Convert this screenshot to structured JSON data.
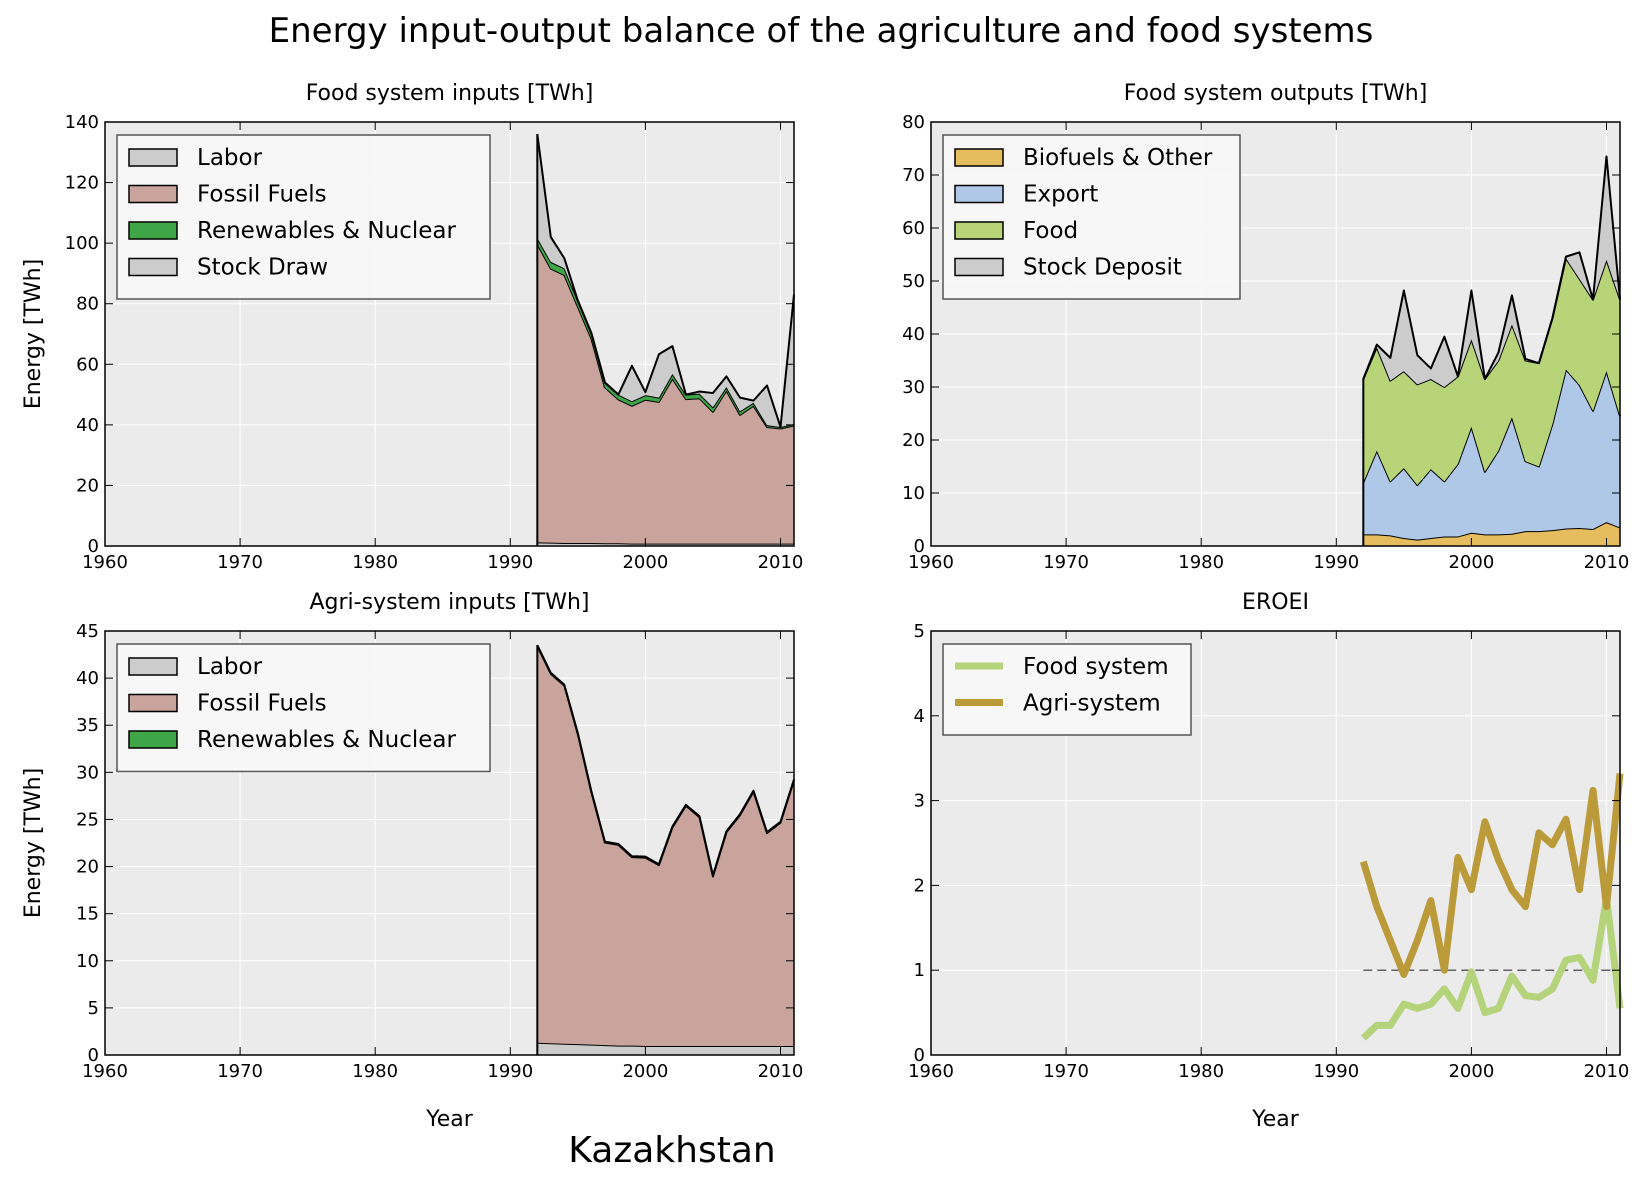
{
  "figure": {
    "title": "Energy input-output balance of the agriculture and food systems",
    "country": "Kazakhstan"
  },
  "colors": {
    "panel_bg": "#ebebeb",
    "labor": "#cccccc",
    "fossil": "#c8a49c",
    "renewables": "#3fa648",
    "stock": "#cccccc",
    "biofuels": "#e6bd5e",
    "export": "#b0c8e8",
    "food": "#b7d479",
    "food_system_line": "#b4d37a",
    "agri_system_line": "#bb9a3a"
  },
  "chart_data": [
    {
      "id": "food_inputs",
      "type": "area",
      "stacked": true,
      "title": "Food system inputs [TWh]",
      "xlabel": "",
      "ylabel": "Energy [TWh]",
      "xlim": [
        1960,
        2011
      ],
      "ylim": [
        0,
        140
      ],
      "xticks": [
        1960,
        1970,
        1980,
        1990,
        2000,
        2010
      ],
      "yticks": [
        0,
        20,
        40,
        60,
        80,
        100,
        120,
        140
      ],
      "grid": true,
      "legend_position": "top-left",
      "x": [
        1992,
        1993,
        1994,
        1995,
        1996,
        1997,
        1998,
        1999,
        2000,
        2001,
        2002,
        2003,
        2004,
        2005,
        2006,
        2007,
        2008,
        2009,
        2010,
        2011
      ],
      "series": [
        {
          "name": "Labor",
          "color_key": "labor",
          "values": [
            1.2,
            1.1,
            1.0,
            1.0,
            1.0,
            0.9,
            0.9,
            0.8,
            0.8,
            0.8,
            0.8,
            0.8,
            0.8,
            0.8,
            0.8,
            0.8,
            0.8,
            0.8,
            0.8,
            0.8
          ]
        },
        {
          "name": "Fossil Fuels",
          "color_key": "fossil",
          "values": [
            98.5,
            90.5,
            88.5,
            78,
            67.5,
            51.5,
            47.5,
            45.5,
            47.5,
            46.8,
            54.5,
            47.7,
            48,
            43.5,
            50.5,
            42.5,
            45.5,
            38.5,
            38,
            39
          ]
        },
        {
          "name": "Renewables & Nuclear",
          "color_key": "renewables",
          "values": [
            2.0,
            2.2,
            2.2,
            2.0,
            1.8,
            1.6,
            1.6,
            1.5,
            1.5,
            1.4,
            1.5,
            1.5,
            1.5,
            1.5,
            1.2,
            1.2,
            1.0,
            0.6,
            0.5,
            0.5
          ]
        },
        {
          "name": "Stock Draw",
          "color_key": "stock",
          "values": [
            34.3,
            8.2,
            3.3,
            0,
            0,
            0,
            0,
            11.7,
            1.0,
            14.3,
            9.2,
            0,
            0.7,
            4.7,
            3.5,
            4.5,
            0.7,
            13.1,
            0,
            42.7
          ]
        }
      ]
    },
    {
      "id": "food_outputs",
      "type": "area",
      "stacked": true,
      "title": "Food system outputs [TWh]",
      "xlabel": "",
      "ylabel": "",
      "xlim": [
        1960,
        2011
      ],
      "ylim": [
        0,
        80
      ],
      "xticks": [
        1960,
        1970,
        1980,
        1990,
        2000,
        2010
      ],
      "yticks": [
        0,
        10,
        20,
        30,
        40,
        50,
        60,
        70,
        80
      ],
      "grid": true,
      "legend_position": "top-left",
      "x": [
        1992,
        1993,
        1994,
        1995,
        1996,
        1997,
        1998,
        1999,
        2000,
        2001,
        2002,
        2003,
        2004,
        2005,
        2006,
        2007,
        2008,
        2009,
        2010,
        2011
      ],
      "series": [
        {
          "name": "Biofuels & Other",
          "color_key": "biofuels",
          "values": [
            2.2,
            2.2,
            2.0,
            1.5,
            1.2,
            1.5,
            1.8,
            1.8,
            2.5,
            2.2,
            2.2,
            2.3,
            2.8,
            2.8,
            3.0,
            3.3,
            3.4,
            3.2,
            4.5,
            3.5
          ]
        },
        {
          "name": "Export",
          "color_key": "export",
          "values": [
            9.8,
            15.8,
            10.2,
            13.2,
            10.3,
            13,
            10.4,
            13.7,
            20,
            11.8,
            15.8,
            22,
            13.2,
            12.2,
            20,
            30,
            27,
            22.3,
            28.5,
            21
          ]
        },
        {
          "name": "Food",
          "color_key": "food",
          "values": [
            19.5,
            19.5,
            19,
            18.3,
            19,
            17,
            17.8,
            16.5,
            16.5,
            17.5,
            17,
            17.5,
            19,
            19.5,
            20,
            21,
            20,
            21,
            21,
            22
          ]
        },
        {
          "name": "Stock Deposit",
          "color_key": "stock",
          "values": [
            0,
            0.5,
            4.3,
            15.2,
            5.5,
            2,
            9.5,
            0,
            9.2,
            0,
            1.5,
            5.5,
            0.3,
            0,
            0,
            0.3,
            5,
            0,
            19.5,
            0
          ]
        }
      ]
    },
    {
      "id": "agri_inputs",
      "type": "area",
      "stacked": true,
      "title": "Agri-system inputs [TWh]",
      "xlabel": "Year",
      "ylabel": "Energy [TWh]",
      "xlim": [
        1960,
        2011
      ],
      "ylim": [
        0,
        45
      ],
      "xticks": [
        1960,
        1970,
        1980,
        1990,
        2000,
        2010
      ],
      "yticks": [
        0,
        5,
        10,
        15,
        20,
        25,
        30,
        35,
        40,
        45
      ],
      "grid": true,
      "legend_position": "top-left",
      "x": [
        1992,
        1993,
        1994,
        1995,
        1996,
        1997,
        1998,
        1999,
        2000,
        2001,
        2002,
        2003,
        2004,
        2005,
        2006,
        2007,
        2008,
        2009,
        2010,
        2011
      ],
      "series": [
        {
          "name": "Labor",
          "color_key": "labor",
          "values": [
            1.3,
            1.25,
            1.2,
            1.15,
            1.1,
            1.05,
            1.0,
            1.0,
            0.95,
            0.95,
            0.95,
            0.95,
            0.95,
            0.95,
            0.95,
            0.95,
            0.95,
            0.95,
            0.95,
            0.95
          ]
        },
        {
          "name": "Fossil Fuels",
          "color_key": "fossil",
          "values": [
            42.1,
            39.2,
            38.0,
            32.9,
            26.8,
            21.5,
            21.3,
            20.0,
            20.0,
            19.2,
            23.2,
            25.5,
            24.3,
            18.0,
            22.7,
            24.5,
            27.0,
            22.6,
            23.7,
            28.2
          ]
        },
        {
          "name": "Renewables & Nuclear",
          "color_key": "renewables",
          "values": [
            0.1,
            0.1,
            0.1,
            0.1,
            0.1,
            0.1,
            0.1,
            0.1,
            0.1,
            0.1,
            0.1,
            0.1,
            0.1,
            0.1,
            0.1,
            0.1,
            0.1,
            0.1,
            0.1,
            0.1
          ]
        }
      ]
    },
    {
      "id": "eroei",
      "type": "line",
      "title": "EROEI",
      "xlabel": "Year",
      "ylabel": "",
      "xlim": [
        1960,
        2011
      ],
      "ylim": [
        0,
        5
      ],
      "xticks": [
        1960,
        1970,
        1980,
        1990,
        2000,
        2010
      ],
      "yticks": [
        0,
        1,
        2,
        3,
        4,
        5
      ],
      "grid": true,
      "legend_position": "top-left",
      "reference_line": {
        "y": 1,
        "x": [
          1992,
          2011
        ],
        "style": "dashed"
      },
      "x": [
        1992,
        1993,
        1994,
        1995,
        1996,
        1997,
        1998,
        1999,
        2000,
        2001,
        2002,
        2003,
        2004,
        2005,
        2006,
        2007,
        2008,
        2009,
        2010,
        2011
      ],
      "series": [
        {
          "name": "Food system",
          "color_key": "food_system_line",
          "values": [
            0.2,
            0.35,
            0.35,
            0.6,
            0.55,
            0.6,
            0.78,
            0.55,
            0.98,
            0.5,
            0.55,
            0.93,
            0.7,
            0.68,
            0.78,
            1.12,
            1.15,
            0.88,
            1.85,
            0.55
          ]
        },
        {
          "name": "Agri-system",
          "color_key": "agri_system_line",
          "values": [
            2.28,
            1.75,
            1.35,
            0.95,
            1.35,
            1.82,
            1.0,
            2.33,
            1.95,
            2.75,
            2.3,
            1.95,
            1.75,
            2.62,
            2.48,
            2.78,
            1.95,
            3.12,
            1.75,
            3.32
          ]
        }
      ]
    }
  ]
}
